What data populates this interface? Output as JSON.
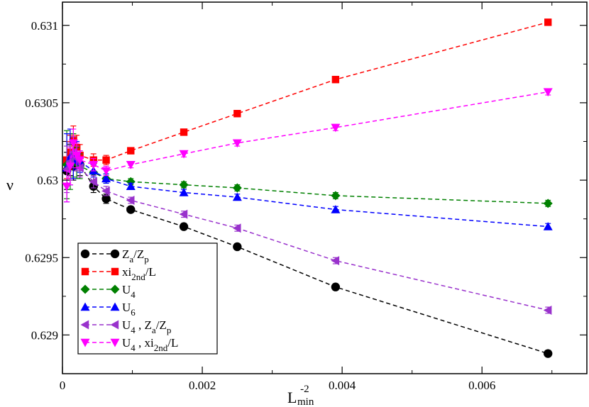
{
  "chart_data": {
    "type": "scatter",
    "title": "",
    "xlabel": {
      "base": "L",
      "sup": "-2",
      "sub": "min"
    },
    "ylabel": "ν",
    "xlim": [
      0,
      0.0075
    ],
    "ylim": [
      0.62875,
      0.63115
    ],
    "x_ticks": [
      0,
      0.002,
      0.004,
      0.006
    ],
    "x_tick_labels": [
      "0",
      "0.002",
      "0.004",
      "0.006"
    ],
    "y_ticks": [
      0.629,
      0.6295,
      0.63,
      0.6305,
      0.631
    ],
    "y_tick_labels": [
      "0.629",
      "0.6295",
      "0.63",
      "0.6305",
      "0.631"
    ],
    "grid": false,
    "legend_position": "bottom-left",
    "series": [
      {
        "name": "Za/Zp",
        "label_parts": [
          [
            "Z",
            ""
          ],
          [
            "a",
            "sub"
          ],
          [
            "/Z",
            ""
          ],
          [
            "p",
            "sub"
          ]
        ],
        "color": "#000000",
        "marker": "circle",
        "x": [
          6.2e-05,
          0.000111,
          0.000156,
          0.000204,
          0.00025,
          0.000444,
          0.000625,
          0.000977,
          0.001736,
          0.0025,
          0.003906,
          0.006944
        ],
        "y": [
          0.63006,
          0.63013,
          0.63009,
          0.63014,
          0.6301,
          0.62996,
          0.62988,
          0.62981,
          0.6297,
          0.62957,
          0.62931,
          0.62888
        ],
        "err": [
          0.00012,
          0.0001,
          9e-05,
          8e-05,
          7e-05,
          4e-05,
          3e-05,
          2e-05,
          2e-05,
          2e-05,
          2e-05,
          2e-05
        ]
      },
      {
        "name": "xi2nd/L",
        "label_parts": [
          [
            "xi",
            ""
          ],
          [
            "2nd",
            "sub"
          ],
          [
            "/L",
            ""
          ]
        ],
        "color": "#ff0000",
        "marker": "square",
        "x": [
          6.2e-05,
          0.000111,
          0.000156,
          0.000204,
          0.00025,
          0.000444,
          0.000625,
          0.000977,
          0.001736,
          0.0025,
          0.003906,
          0.006944
        ],
        "y": [
          0.63013,
          0.63018,
          0.63026,
          0.63021,
          0.63016,
          0.63013,
          0.63013,
          0.63019,
          0.63031,
          0.63043,
          0.63065,
          0.63102
        ],
        "err": [
          0.00012,
          0.00011,
          9e-05,
          8e-05,
          7e-05,
          4e-05,
          3e-05,
          2e-05,
          2e-05,
          2e-05,
          2e-05,
          2e-05
        ]
      },
      {
        "name": "U4",
        "label_parts": [
          [
            "U",
            ""
          ],
          [
            "4",
            "sub"
          ]
        ],
        "color": "#008000",
        "marker": "diamond",
        "x": [
          6.2e-05,
          0.000111,
          0.000156,
          0.000204,
          0.00025,
          0.000444,
          0.000625,
          0.000977,
          0.001736,
          0.0025,
          0.003906,
          0.006944
        ],
        "y": [
          0.6301,
          0.63012,
          0.63016,
          0.63011,
          0.63009,
          0.63005,
          0.63001,
          0.62999,
          0.62997,
          0.62995,
          0.6299,
          0.62985
        ],
        "err": [
          0.00022,
          0.00018,
          0.00014,
          0.0001,
          8e-05,
          5e-05,
          3e-05,
          2e-05,
          2e-05,
          2e-05,
          2e-05,
          2e-05
        ]
      },
      {
        "name": "U6",
        "label_parts": [
          [
            "U",
            ""
          ],
          [
            "6",
            "sub"
          ]
        ],
        "color": "#0000ff",
        "marker": "triangle-up",
        "x": [
          6.2e-05,
          0.000111,
          0.000156,
          0.000204,
          0.00025,
          0.000444,
          0.000625,
          0.000977,
          0.001736,
          0.0025,
          0.003906,
          0.006944
        ],
        "y": [
          0.63008,
          0.63015,
          0.63013,
          0.63016,
          0.63012,
          0.63006,
          0.63001,
          0.62996,
          0.62992,
          0.62989,
          0.62981,
          0.6297
        ],
        "err": [
          0.00022,
          0.00018,
          0.00012,
          9e-05,
          7e-05,
          4e-05,
          3e-05,
          2e-05,
          2e-05,
          2e-05,
          2e-05,
          2e-05
        ]
      },
      {
        "name": "U4 , Za/Zp",
        "label_parts": [
          [
            "U",
            ""
          ],
          [
            "4",
            "sub"
          ],
          [
            " , Z",
            ""
          ],
          [
            "a",
            "sub"
          ],
          [
            "/Z",
            ""
          ],
          [
            "p",
            "sub"
          ]
        ],
        "color": "#9932cc",
        "marker": "triangle-left",
        "x": [
          6.2e-05,
          0.000111,
          0.000156,
          0.000204,
          0.00025,
          0.000444,
          0.000625,
          0.000977,
          0.001736,
          0.0025,
          0.003906,
          0.006944
        ],
        "y": [
          0.63007,
          0.63012,
          0.63018,
          0.63014,
          0.63008,
          0.62999,
          0.62993,
          0.62987,
          0.62978,
          0.62969,
          0.62948,
          0.62916
        ],
        "err": [
          0.00015,
          0.00012,
          0.0001,
          8e-05,
          6e-05,
          4e-05,
          3e-05,
          2e-05,
          2e-05,
          2e-05,
          2e-05,
          2e-05
        ]
      },
      {
        "name": "U4 , xi2nd/L",
        "label_parts": [
          [
            "U",
            ""
          ],
          [
            "4",
            "sub"
          ],
          [
            " , xi",
            ""
          ],
          [
            "2nd",
            "sub"
          ],
          [
            "/L",
            ""
          ]
        ],
        "color": "#ff00ff",
        "marker": "triangle-down",
        "x": [
          6.2e-05,
          0.000111,
          0.000156,
          0.000204,
          0.00025,
          0.000444,
          0.000625,
          0.000977,
          0.001736,
          0.0025,
          0.003906,
          0.006944
        ],
        "y": [
          0.62996,
          0.63009,
          0.63024,
          0.63016,
          0.63013,
          0.6301,
          0.63006,
          0.6301,
          0.63017,
          0.63024,
          0.63034,
          0.63057
        ],
        "err": [
          0.0001,
          0.00012,
          9e-05,
          8e-05,
          6e-05,
          4e-05,
          3e-05,
          2e-05,
          2e-05,
          2e-05,
          2e-05,
          2e-05
        ]
      }
    ]
  }
}
